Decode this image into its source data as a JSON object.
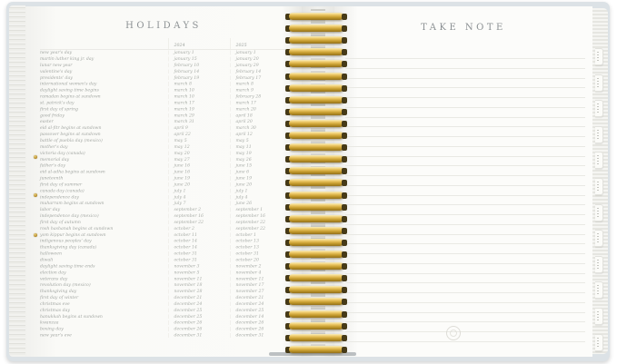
{
  "left_page": {
    "title": "HOLIDAYS",
    "years": [
      "2024",
      "2025"
    ],
    "holidays": [
      [
        "new year's day",
        "january 1",
        "january 1"
      ],
      [
        "martin luther king jr. day",
        "january 15",
        "january 20"
      ],
      [
        "lunar new year",
        "february 10",
        "january 29"
      ],
      [
        "valentine's day",
        "february 14",
        "february 14"
      ],
      [
        "presidents' day",
        "february 19",
        "february 17"
      ],
      [
        "international women's day",
        "march 8",
        "march 8"
      ],
      [
        "daylight saving time begins",
        "march 10",
        "march 9"
      ],
      [
        "ramadan begins at sundown",
        "march 10",
        "february 28"
      ],
      [
        "st. patrick's day",
        "march 17",
        "march 17"
      ],
      [
        "first day of spring",
        "march 19",
        "march 20"
      ],
      [
        "good friday",
        "march 29",
        "april 18"
      ],
      [
        "easter",
        "march 31",
        "april 20"
      ],
      [
        "eid al-fitr begins at sundown",
        "april 9",
        "march 30"
      ],
      [
        "passover begins at sundown",
        "april 22",
        "april 12"
      ],
      [
        "battle of puebla day (mexico)",
        "may 5",
        "may 5"
      ],
      [
        "mother's day",
        "may 12",
        "may 11"
      ],
      [
        "victoria day (canada)",
        "may 20",
        "may 19"
      ],
      [
        "memorial day",
        "may 27",
        "may 26"
      ],
      [
        "father's day",
        "june 16",
        "june 15"
      ],
      [
        "eid al-adha begins at sundown",
        "june 16",
        "june 6"
      ],
      [
        "juneteenth",
        "june 19",
        "june 19"
      ],
      [
        "first day of summer",
        "june 20",
        "june 20"
      ],
      [
        "canada day (canada)",
        "july 1",
        "july 1"
      ],
      [
        "independence day",
        "july 4",
        "july 4"
      ],
      [
        "muharram begins at sundown",
        "july 7",
        "june 26"
      ],
      [
        "labor day",
        "september 2",
        "september 1"
      ],
      [
        "independence day (mexico)",
        "september 16",
        "september 16"
      ],
      [
        "first day of autumn",
        "september 22",
        "september 22"
      ],
      [
        "rosh hashanah begins at sundown",
        "october 2",
        "september 22"
      ],
      [
        "yom kippur begins at sundown",
        "october 11",
        "october 1"
      ],
      [
        "indigenous peoples' day",
        "october 14",
        "october 13"
      ],
      [
        "thanksgiving day (canada)",
        "october 14",
        "october 13"
      ],
      [
        "halloween",
        "october 31",
        "october 31"
      ],
      [
        "diwali",
        "october 31",
        "october 20"
      ],
      [
        "daylight saving time ends",
        "november 3",
        "november 2"
      ],
      [
        "election day",
        "november 5",
        "november 4"
      ],
      [
        "veterans day",
        "november 11",
        "november 11"
      ],
      [
        "revolution day (mexico)",
        "november 18",
        "november 17"
      ],
      [
        "thanksgiving day",
        "november 28",
        "november 27"
      ],
      [
        "first day of winter",
        "december 21",
        "december 21"
      ],
      [
        "christmas eve",
        "december 24",
        "december 24"
      ],
      [
        "christmas day",
        "december 25",
        "december 25"
      ],
      [
        "hanukkah begins at sundown",
        "december 25",
        "december 14"
      ],
      [
        "kwanzaa",
        "december 26",
        "december 26"
      ],
      [
        "boxing day",
        "december 26",
        "december 26"
      ],
      [
        "new year's eve",
        "december 31",
        "december 31"
      ]
    ]
  },
  "right_page": {
    "title": "TAKE NOTE",
    "ruled_line_count": 30,
    "has_brand_emblem": true
  },
  "binding": {
    "coil_count": 29,
    "coil_color": "#c49a2c"
  },
  "edge_tabs": {
    "count": 12
  },
  "left_margin_rivets": {
    "count": 3
  },
  "colors": {
    "cover": "#dce2e6",
    "page": "#fbfbf8",
    "ink": "#a6a9a5",
    "title_ink": "#8b9093",
    "rule_line": "#e9e9e4"
  }
}
